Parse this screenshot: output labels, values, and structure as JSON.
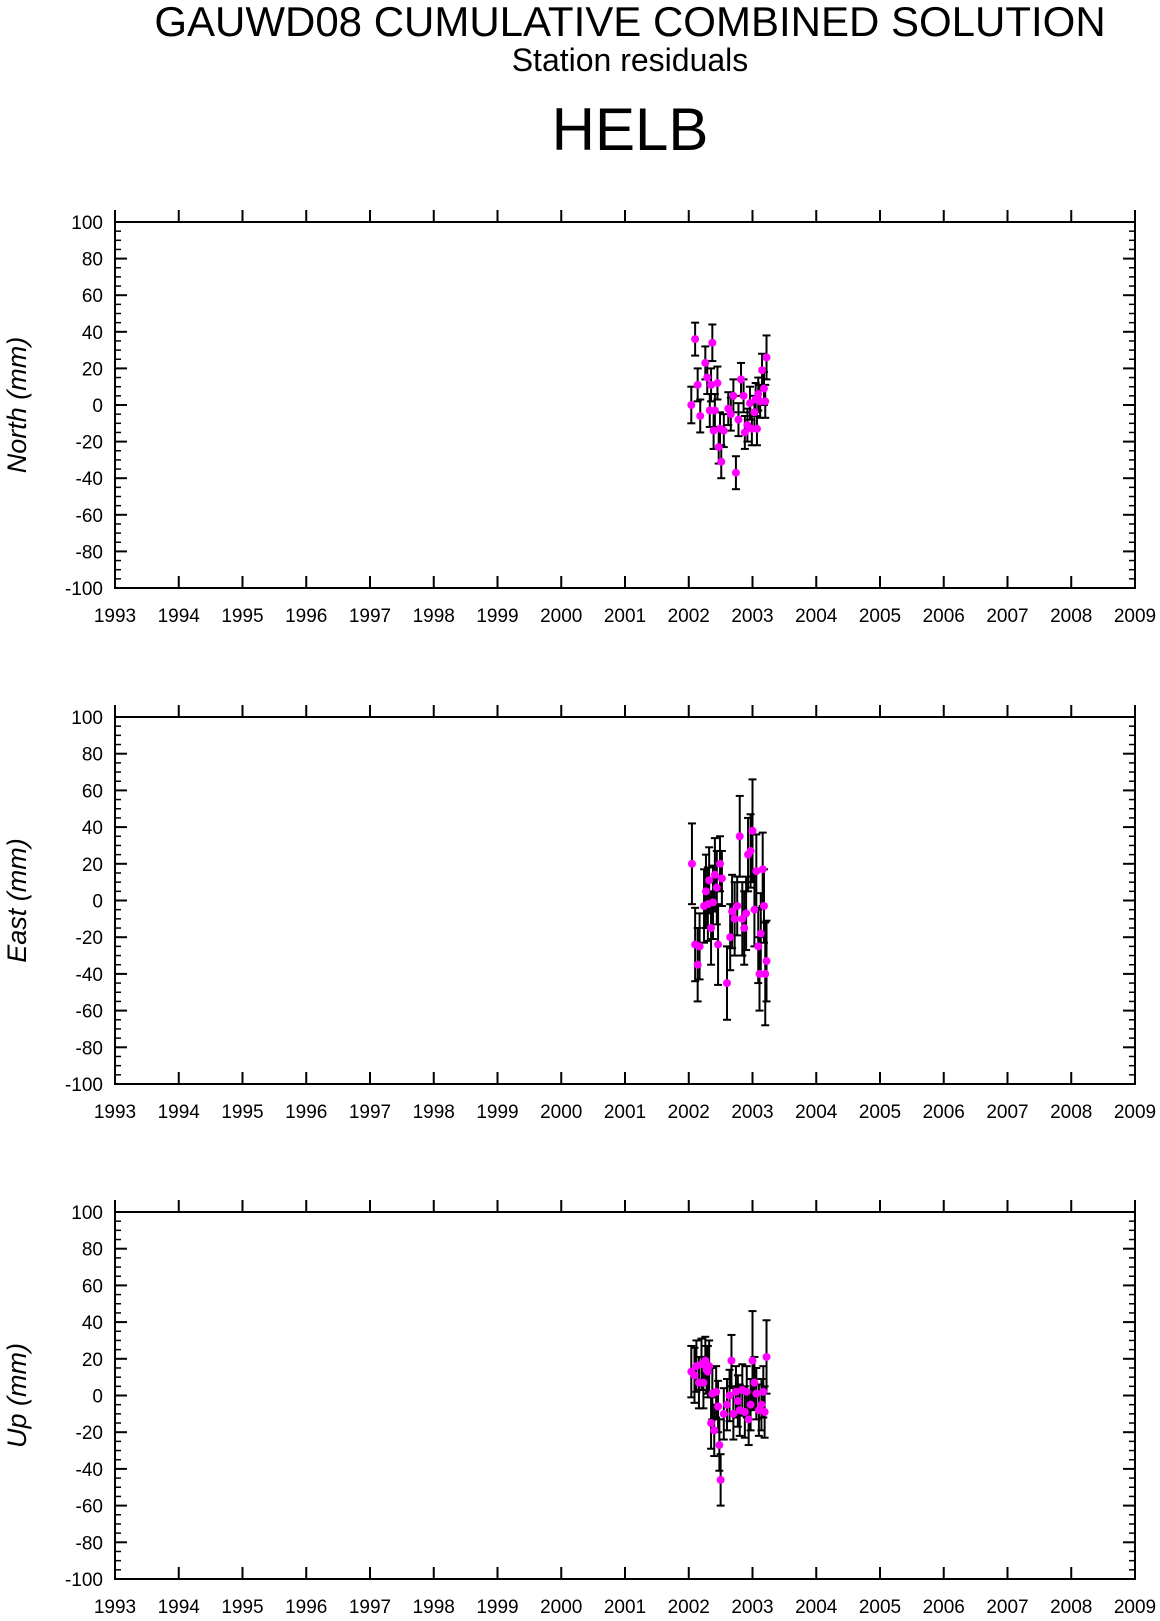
{
  "header": {
    "title": "GAUWD08 CUMULATIVE COMBINED SOLUTION",
    "subtitle": "Station residuals",
    "station": "HELB"
  },
  "colors": {
    "marker": "#ff00ff",
    "errorbar": "#000000",
    "axis": "#000000"
  },
  "chart_data": [
    {
      "type": "scatter",
      "ylabel": "North (mm)",
      "xlim": [
        1993,
        2009
      ],
      "ylim": [
        -100,
        100
      ],
      "xticks": [
        "1993",
        "1994",
        "1995",
        "1996",
        "1997",
        "1998",
        "1999",
        "2000",
        "2001",
        "2002",
        "2003",
        "2004",
        "2005",
        "2006",
        "2007",
        "2008",
        "2009"
      ],
      "yticks": [
        "100",
        "80",
        "60",
        "40",
        "20",
        "0",
        "-20",
        "-40",
        "-60",
        "-80",
        "-100"
      ],
      "grid": false,
      "points": [
        {
          "x": 2002.04,
          "y": 0,
          "err": 10
        },
        {
          "x": 2002.1,
          "y": 36,
          "err": 9
        },
        {
          "x": 2002.14,
          "y": 11,
          "err": 9
        },
        {
          "x": 2002.18,
          "y": -6,
          "err": 9
        },
        {
          "x": 2002.26,
          "y": 23,
          "err": 9
        },
        {
          "x": 2002.29,
          "y": 15,
          "err": 9
        },
        {
          "x": 2002.33,
          "y": -3,
          "err": 9
        },
        {
          "x": 2002.35,
          "y": 11,
          "err": 9
        },
        {
          "x": 2002.37,
          "y": 34,
          "err": 10
        },
        {
          "x": 2002.39,
          "y": -14,
          "err": 10
        },
        {
          "x": 2002.41,
          "y": -3,
          "err": 9
        },
        {
          "x": 2002.45,
          "y": 12,
          "err": 9
        },
        {
          "x": 2002.47,
          "y": -23,
          "err": 9
        },
        {
          "x": 2002.49,
          "y": -13,
          "err": 9
        },
        {
          "x": 2002.51,
          "y": -31,
          "err": 9
        },
        {
          "x": 2002.55,
          "y": -14,
          "err": 9
        },
        {
          "x": 2002.62,
          "y": -2,
          "err": 9
        },
        {
          "x": 2002.66,
          "y": -5,
          "err": 9
        },
        {
          "x": 2002.7,
          "y": 5,
          "err": 9
        },
        {
          "x": 2002.74,
          "y": -37,
          "err": 9
        },
        {
          "x": 2002.78,
          "y": -8,
          "err": 9
        },
        {
          "x": 2002.82,
          "y": 14,
          "err": 9
        },
        {
          "x": 2002.86,
          "y": 5,
          "err": 9
        },
        {
          "x": 2002.88,
          "y": -15,
          "err": 9
        },
        {
          "x": 2002.92,
          "y": -11,
          "err": 9
        },
        {
          "x": 2002.96,
          "y": 1,
          "err": 9
        },
        {
          "x": 2002.99,
          "y": -13,
          "err": 9
        },
        {
          "x": 2003.03,
          "y": -4,
          "err": 9
        },
        {
          "x": 2003.05,
          "y": 3,
          "err": 9
        },
        {
          "x": 2003.07,
          "y": -13,
          "err": 9
        },
        {
          "x": 2003.09,
          "y": 6,
          "err": 9
        },
        {
          "x": 2003.12,
          "y": 2,
          "err": 9
        },
        {
          "x": 2003.15,
          "y": 19,
          "err": 9
        },
        {
          "x": 2003.18,
          "y": 9,
          "err": 9
        },
        {
          "x": 2003.2,
          "y": 2,
          "err": 9
        },
        {
          "x": 2003.22,
          "y": 26,
          "err": 12
        }
      ]
    },
    {
      "type": "scatter",
      "ylabel": "East (mm)",
      "xlim": [
        1993,
        2009
      ],
      "ylim": [
        -100,
        100
      ],
      "xticks": [
        "1993",
        "1994",
        "1995",
        "1996",
        "1997",
        "1998",
        "1999",
        "2000",
        "2001",
        "2002",
        "2003",
        "2004",
        "2005",
        "2006",
        "2007",
        "2008",
        "2009"
      ],
      "yticks": [
        "100",
        "80",
        "60",
        "40",
        "20",
        "0",
        "-20",
        "-40",
        "-60",
        "-80",
        "-100"
      ],
      "grid": false,
      "points": [
        {
          "x": 2002.05,
          "y": 20,
          "err": 22
        },
        {
          "x": 2002.1,
          "y": -24,
          "err": 20
        },
        {
          "x": 2002.14,
          "y": -35,
          "err": 20
        },
        {
          "x": 2002.17,
          "y": -25,
          "err": 18
        },
        {
          "x": 2002.24,
          "y": -3,
          "err": 20
        },
        {
          "x": 2002.27,
          "y": 5,
          "err": 20
        },
        {
          "x": 2002.3,
          "y": -2,
          "err": 20
        },
        {
          "x": 2002.32,
          "y": 11,
          "err": 18
        },
        {
          "x": 2002.35,
          "y": -15,
          "err": 20
        },
        {
          "x": 2002.38,
          "y": -1,
          "err": 20
        },
        {
          "x": 2002.41,
          "y": 14,
          "err": 20
        },
        {
          "x": 2002.44,
          "y": 7,
          "err": 20
        },
        {
          "x": 2002.46,
          "y": -24,
          "err": 22
        },
        {
          "x": 2002.49,
          "y": 20,
          "err": 15
        },
        {
          "x": 2002.52,
          "y": 12,
          "err": 15
        },
        {
          "x": 2002.6,
          "y": -45,
          "err": 20
        },
        {
          "x": 2002.65,
          "y": -20,
          "err": 18
        },
        {
          "x": 2002.68,
          "y": -6,
          "err": 20
        },
        {
          "x": 2002.72,
          "y": -10,
          "err": 20
        },
        {
          "x": 2002.76,
          "y": -3,
          "err": 16
        },
        {
          "x": 2002.8,
          "y": 35,
          "err": 22
        },
        {
          "x": 2002.84,
          "y": -10,
          "err": 20
        },
        {
          "x": 2002.87,
          "y": -15,
          "err": 20
        },
        {
          "x": 2002.9,
          "y": -7,
          "err": 20
        },
        {
          "x": 2002.93,
          "y": 25,
          "err": 20
        },
        {
          "x": 2002.97,
          "y": 27,
          "err": 20
        },
        {
          "x": 2003.0,
          "y": 38,
          "err": 28
        },
        {
          "x": 2003.03,
          "y": -5,
          "err": 20
        },
        {
          "x": 2003.06,
          "y": 16,
          "err": 20
        },
        {
          "x": 2003.09,
          "y": -25,
          "err": 20
        },
        {
          "x": 2003.11,
          "y": -40,
          "err": 20
        },
        {
          "x": 2003.13,
          "y": -18,
          "err": 22
        },
        {
          "x": 2003.16,
          "y": 17,
          "err": 20
        },
        {
          "x": 2003.18,
          "y": -3,
          "err": 20
        },
        {
          "x": 2003.2,
          "y": -40,
          "err": 28
        },
        {
          "x": 2003.22,
          "y": -33,
          "err": 22
        }
      ]
    },
    {
      "type": "scatter",
      "ylabel": "Up (mm)",
      "xlim": [
        1993,
        2009
      ],
      "ylim": [
        -100,
        100
      ],
      "xticks": [
        "1993",
        "1994",
        "1995",
        "1996",
        "1997",
        "1998",
        "1999",
        "2000",
        "2001",
        "2002",
        "2003",
        "2004",
        "2005",
        "2006",
        "2007",
        "2008",
        "2009"
      ],
      "yticks": [
        "100",
        "80",
        "60",
        "40",
        "20",
        "0",
        "-20",
        "-40",
        "-60",
        "-80",
        "-100"
      ],
      "grid": false,
      "points": [
        {
          "x": 2002.04,
          "y": 13,
          "err": 14
        },
        {
          "x": 2002.09,
          "y": 11,
          "err": 15
        },
        {
          "x": 2002.12,
          "y": 16,
          "err": 14
        },
        {
          "x": 2002.16,
          "y": 7,
          "err": 14
        },
        {
          "x": 2002.2,
          "y": 17,
          "err": 14
        },
        {
          "x": 2002.23,
          "y": 7,
          "err": 14
        },
        {
          "x": 2002.26,
          "y": 19,
          "err": 13
        },
        {
          "x": 2002.28,
          "y": 14,
          "err": 13
        },
        {
          "x": 2002.3,
          "y": 13,
          "err": 14
        },
        {
          "x": 2002.32,
          "y": 16,
          "err": 14
        },
        {
          "x": 2002.35,
          "y": -15,
          "err": 14
        },
        {
          "x": 2002.37,
          "y": 1,
          "err": 14
        },
        {
          "x": 2002.4,
          "y": -19,
          "err": 14
        },
        {
          "x": 2002.43,
          "y": 2,
          "err": 14
        },
        {
          "x": 2002.46,
          "y": -6,
          "err": 14
        },
        {
          "x": 2002.48,
          "y": -27,
          "err": 14
        },
        {
          "x": 2002.5,
          "y": -46,
          "err": 14
        },
        {
          "x": 2002.55,
          "y": -10,
          "err": 14
        },
        {
          "x": 2002.6,
          "y": -5,
          "err": 14
        },
        {
          "x": 2002.64,
          "y": 0,
          "err": 14
        },
        {
          "x": 2002.67,
          "y": 19,
          "err": 14
        },
        {
          "x": 2002.7,
          "y": -10,
          "err": 14
        },
        {
          "x": 2002.74,
          "y": 2,
          "err": 14
        },
        {
          "x": 2002.77,
          "y": -3,
          "err": 14
        },
        {
          "x": 2002.8,
          "y": -8,
          "err": 14
        },
        {
          "x": 2002.84,
          "y": 3,
          "err": 14
        },
        {
          "x": 2002.88,
          "y": -9,
          "err": 14
        },
        {
          "x": 2002.91,
          "y": 2,
          "err": 14
        },
        {
          "x": 2002.94,
          "y": -13,
          "err": 14
        },
        {
          "x": 2002.97,
          "y": -5,
          "err": 14
        },
        {
          "x": 2003.0,
          "y": 19,
          "err": 27
        },
        {
          "x": 2003.03,
          "y": 7,
          "err": 14
        },
        {
          "x": 2003.06,
          "y": 1,
          "err": 14
        },
        {
          "x": 2003.1,
          "y": -8,
          "err": 14
        },
        {
          "x": 2003.14,
          "y": -5,
          "err": 14
        },
        {
          "x": 2003.17,
          "y": 2,
          "err": 14
        },
        {
          "x": 2003.19,
          "y": -9,
          "err": 14
        },
        {
          "x": 2003.22,
          "y": 21,
          "err": 20
        }
      ]
    }
  ]
}
